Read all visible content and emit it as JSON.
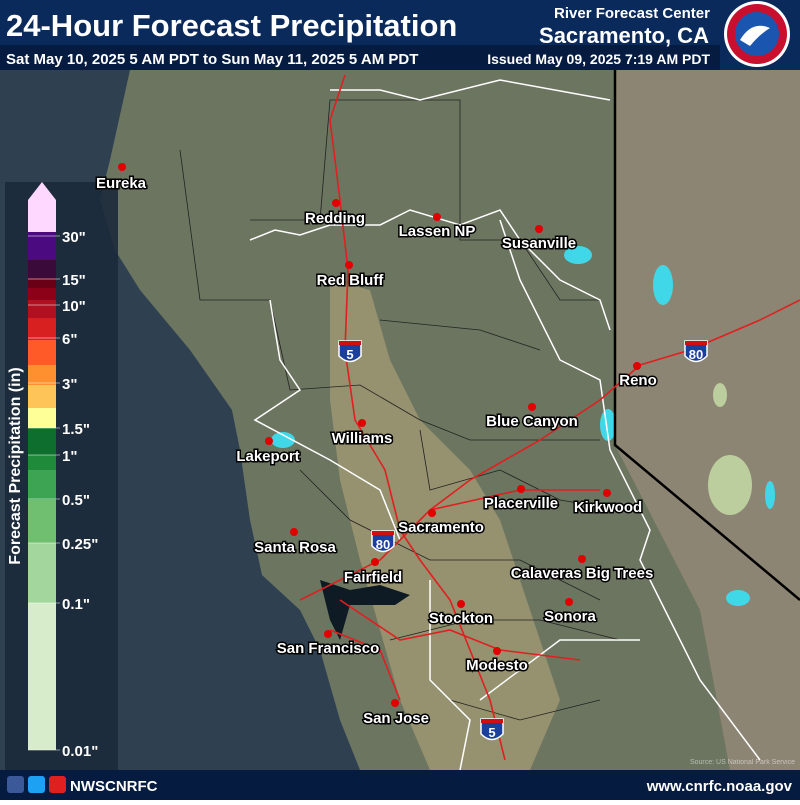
{
  "header": {
    "title": "24-Hour Forecast Precipitation",
    "period": "Sat May 10, 2025 5 AM PDT to Sun May 11, 2025 5 AM PDT",
    "issued": "Issued May 09, 2025 7:19 AM PDT",
    "center": "River Forecast Center",
    "location": "Sacramento, CA"
  },
  "legend": {
    "title": "Forecast Precipitation (in)",
    "labels": [
      "30\"",
      "15\"",
      "10\"",
      "6\"",
      "3\"",
      "1.5\"",
      "1\"",
      "0.5\"",
      "0.25\"",
      "0.1\"",
      "0.01\""
    ]
  },
  "cities": [
    "Eureka",
    "Redding",
    "Lassen NP",
    "Susanville",
    "Red Bluff",
    "Reno",
    "Blue Canyon",
    "Williams",
    "Lakeport",
    "Placerville",
    "Kirkwood",
    "Sacramento",
    "Santa Rosa",
    "Calaveras Big Trees",
    "Fairfield",
    "Stockton",
    "Sonora",
    "San Francisco",
    "Modesto",
    "San Jose"
  ],
  "highways": [
    "5",
    "80",
    "80",
    "5"
  ],
  "source": "Source: US National Park Service",
  "footer": {
    "handle": "NWSCNRFC",
    "url": "www.cnrfc.noaa.gov"
  }
}
